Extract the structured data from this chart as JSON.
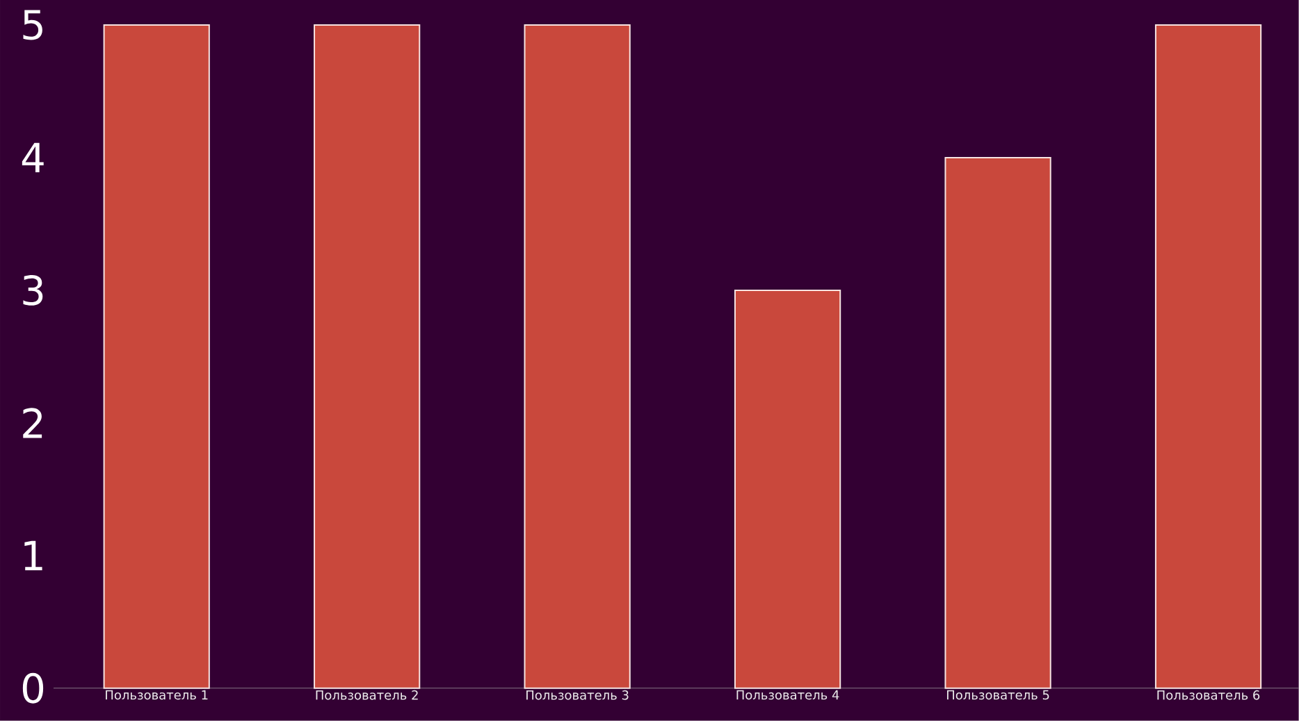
{
  "chart_data": {
    "type": "bar",
    "categories": [
      "Пользователь 1",
      "Пользователь 2",
      "Пользователь 3",
      "Пользователь 4",
      "Пользователь 5",
      "Пользователь 6"
    ],
    "values": [
      5,
      5,
      5,
      3,
      4,
      5
    ],
    "color": "#c9483c",
    "ylim": [
      0,
      5
    ],
    "yticks": [
      0,
      1,
      2,
      3,
      4,
      5
    ]
  }
}
